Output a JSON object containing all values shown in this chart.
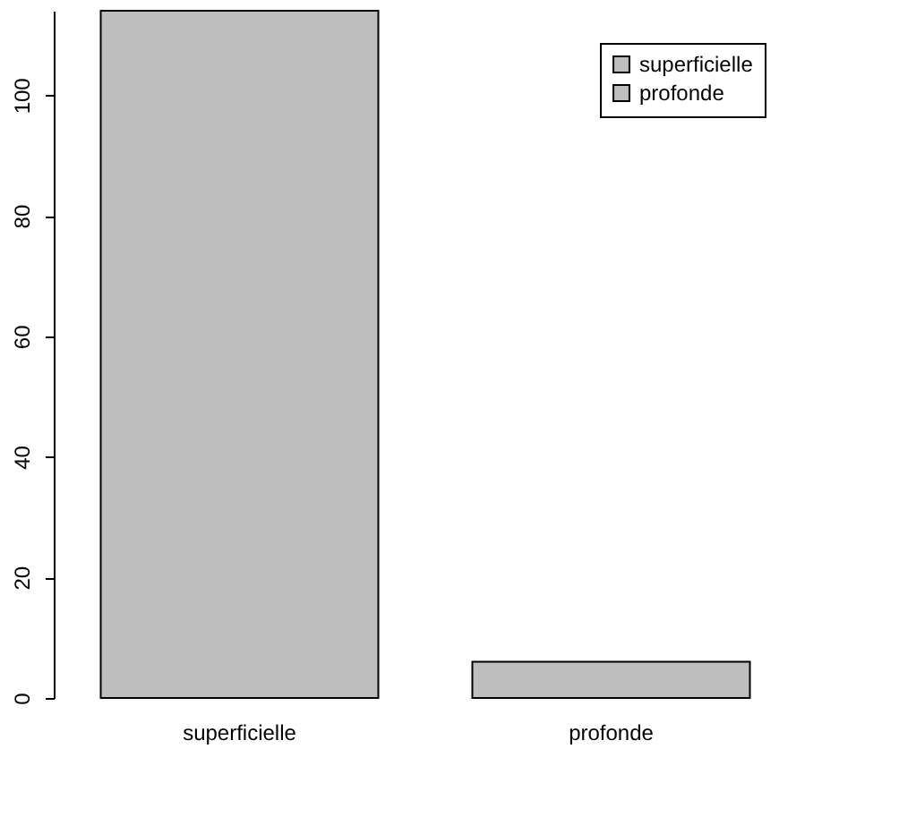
{
  "chart_data": {
    "type": "bar",
    "categories": [
      "superficielle",
      "profonde"
    ],
    "series": [
      {
        "name": "superficielle",
        "color": "#bebebe",
        "values": [
          114,
          null
        ]
      },
      {
        "name": "profonde",
        "color": "#bebebe",
        "values": [
          null,
          6
        ]
      }
    ],
    "ylim": [
      0,
      114
    ],
    "yticks": [
      0,
      20,
      40,
      60,
      80,
      100
    ],
    "grid": false,
    "legend": "top right"
  }
}
